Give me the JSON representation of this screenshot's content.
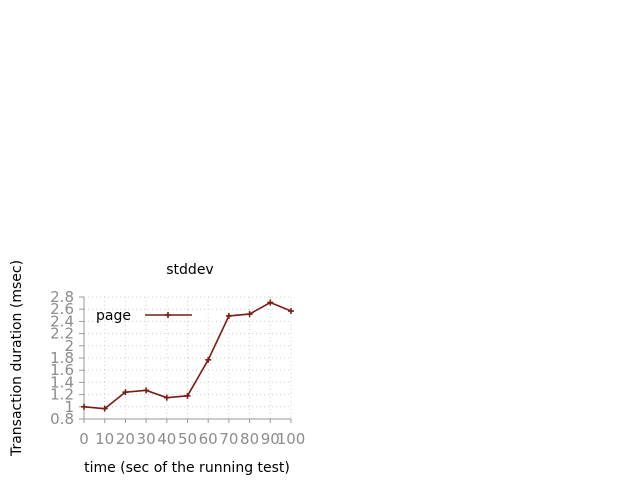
{
  "chart_data": {
    "type": "line",
    "title": "stddev",
    "xlabel": "time (sec of the running test)",
    "ylabel": "Transaction duration (msec)",
    "xlim": [
      0,
      100
    ],
    "ylim": [
      0.8,
      2.8
    ],
    "xticks": [
      "0",
      "10",
      "20",
      "30",
      "40",
      "50",
      "60",
      "70",
      "80",
      "90",
      "100"
    ],
    "yticks": [
      "0.8",
      "1",
      "1.2",
      "1.4",
      "1.6",
      "1.8",
      "2",
      "2.2",
      "2.4",
      "2.6",
      "2.8"
    ],
    "grid": true,
    "legend_position": "top-left",
    "series": [
      {
        "name": "page",
        "color": "#7b1c14",
        "marker": "plus",
        "x": [
          0,
          10,
          20,
          30,
          40,
          50,
          60,
          70,
          80,
          90,
          100
        ],
        "y": [
          1.0,
          0.97,
          1.24,
          1.27,
          1.15,
          1.18,
          1.77,
          2.49,
          2.52,
          2.71,
          2.57
        ]
      }
    ]
  }
}
